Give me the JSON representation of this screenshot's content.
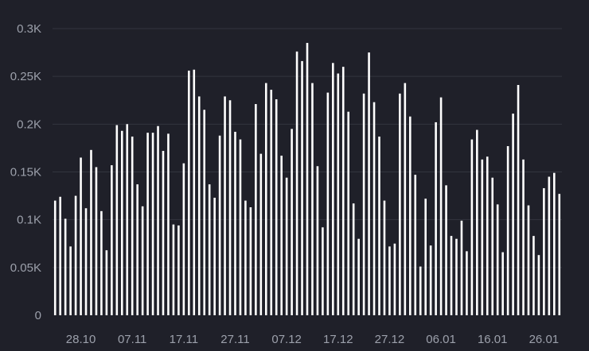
{
  "chart_data": {
    "type": "bar",
    "title": "",
    "xlabel": "",
    "ylabel": "",
    "ylim": [
      0,
      300
    ],
    "grid": true,
    "y_ticks": [
      {
        "value": 0,
        "label": "0"
      },
      {
        "value": 50,
        "label": "0.05K"
      },
      {
        "value": 100,
        "label": "0.1K"
      },
      {
        "value": 150,
        "label": "0.15K"
      },
      {
        "value": 200,
        "label": "0.2K"
      },
      {
        "value": 250,
        "label": "0.25K"
      },
      {
        "value": 300,
        "label": "0.3K"
      }
    ],
    "x_ticks": [
      {
        "index": 5,
        "label": "28.10"
      },
      {
        "index": 15,
        "label": "07.11"
      },
      {
        "index": 25,
        "label": "17.11"
      },
      {
        "index": 35,
        "label": "27.11"
      },
      {
        "index": 45,
        "label": "07.12"
      },
      {
        "index": 55,
        "label": "17.12"
      },
      {
        "index": 65,
        "label": "27.12"
      },
      {
        "index": 75,
        "label": "06.01"
      },
      {
        "index": 85,
        "label": "16.01"
      },
      {
        "index": 95,
        "label": "26.01"
      }
    ],
    "bar_color": "#ffffff",
    "background_color": "#1f2029",
    "values": [
      120,
      124,
      101,
      72,
      125,
      165,
      112,
      173,
      155,
      109,
      68,
      157,
      199,
      193,
      200,
      187,
      137,
      114,
      191,
      191,
      198,
      172,
      190,
      95,
      94,
      159,
      256,
      257,
      229,
      215,
      137,
      123,
      188,
      229,
      225,
      192,
      184,
      120,
      113,
      221,
      169,
      243,
      236,
      226,
      167,
      144,
      195,
      276,
      266,
      285,
      243,
      156,
      92,
      233,
      264,
      253,
      260,
      213,
      117,
      80,
      232,
      275,
      223,
      187,
      120,
      72,
      75,
      232,
      243,
      208,
      147,
      51,
      122,
      73,
      202,
      228,
      136,
      83,
      80,
      99,
      67,
      184,
      194,
      163,
      166,
      144,
      116,
      66,
      177,
      211,
      241,
      163,
      115,
      83,
      63,
      133,
      145,
      149,
      127
    ]
  }
}
